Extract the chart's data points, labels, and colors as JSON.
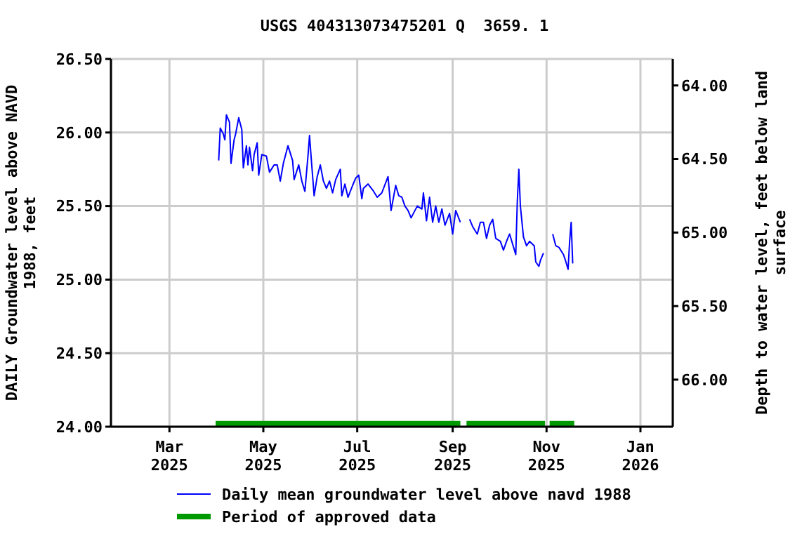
{
  "chart_data": {
    "type": "line",
    "title": "USGS 404313073475201 Q  3659. 1",
    "ylabel": "DAILY Groundwater level above NAVD 1988, feet",
    "y2label": "Depth to water level, feet below land surface",
    "xlim": [
      "2025-01-22",
      "2026-01-22"
    ],
    "xticks": [
      {
        "value": "2025-03-01",
        "label": "Mar\n2025"
      },
      {
        "value": "2025-05-01",
        "label": "May\n2025"
      },
      {
        "value": "2025-07-01",
        "label": "Jul\n2025"
      },
      {
        "value": "2025-09-01",
        "label": "Sep\n2025"
      },
      {
        "value": "2025-11-01",
        "label": "Nov\n2025"
      },
      {
        "value": "2026-01-01",
        "label": "Jan\n2026"
      }
    ],
    "ylim": [
      24,
      26.5
    ],
    "yticks": [
      {
        "value": 24,
        "label": "24.00"
      },
      {
        "value": 24.5,
        "label": "24.50"
      },
      {
        "value": 25,
        "label": "25.00"
      },
      {
        "value": 25.5,
        "label": "25.50"
      },
      {
        "value": 26,
        "label": "26.00"
      },
      {
        "value": 26.5,
        "label": "26.50"
      }
    ],
    "y2lim": [
      66.32,
      63.82
    ],
    "y2ticks": [
      {
        "value": 64,
        "label": "64.00"
      },
      {
        "value": 64.5,
        "label": "64.50"
      },
      {
        "value": 65,
        "label": "65.00"
      },
      {
        "value": 65.5,
        "label": "65.50"
      },
      {
        "value": 66,
        "label": "66.00"
      }
    ],
    "grid": true,
    "legend": "bottom",
    "line_style": "solid",
    "series": [
      {
        "name": "Daily mean groundwater level above navd 1988",
        "color": "#0000ff",
        "x": [
          "2025-04-02",
          "2025-04-03",
          "2025-04-05",
          "2025-04-06",
          "2025-04-07",
          "2025-04-09",
          "2025-04-10",
          "2025-04-12",
          "2025-04-13",
          "2025-04-15",
          "2025-04-17",
          "2025-04-18",
          "2025-04-20",
          "2025-04-21",
          "2025-04-22",
          "2025-04-24",
          "2025-04-25",
          "2025-04-27",
          "2025-04-28",
          "2025-04-30",
          "2025-05-03",
          "2025-05-05",
          "2025-05-08",
          "2025-05-10",
          "2025-05-12",
          "2025-05-14",
          "2025-05-17",
          "2025-05-20",
          "2025-05-21",
          "2025-05-24",
          "2025-05-26",
          "2025-05-28",
          "2025-05-30",
          "2025-05-31",
          "2025-06-01",
          "2025-06-03",
          "2025-06-05",
          "2025-06-07",
          "2025-06-09",
          "2025-06-11",
          "2025-06-13",
          "2025-06-15",
          "2025-06-17",
          "2025-06-20",
          "2025-06-21",
          "2025-06-23",
          "2025-06-25",
          "2025-06-28",
          "2025-06-30",
          "2025-07-02",
          "2025-07-04",
          "2025-07-05",
          "2025-07-08",
          "2025-07-11",
          "2025-07-14",
          "2025-07-17",
          "2025-07-21",
          "2025-07-23",
          "2025-07-26",
          "2025-07-28",
          "2025-07-30",
          "2025-08-01",
          "2025-08-03",
          "2025-08-05",
          "2025-08-09",
          "2025-08-12",
          "2025-08-13",
          "2025-08-15",
          "2025-08-17",
          "2025-08-19",
          "2025-08-21",
          "2025-08-23",
          "2025-08-25",
          "2025-08-27",
          "2025-08-30",
          "2025-09-01",
          "2025-09-03",
          "2025-09-06",
          "2025-09-10",
          "2025-09-12",
          "2025-09-14",
          "2025-09-17",
          "2025-09-19",
          "2025-09-21",
          "2025-09-23",
          "2025-09-25",
          "2025-09-27",
          "2025-09-29",
          "2025-10-02",
          "2025-10-04",
          "2025-10-06",
          "2025-10-08",
          "2025-10-12",
          "2025-10-13",
          "2025-10-14",
          "2025-10-15",
          "2025-10-17",
          "2025-10-19",
          "2025-10-21",
          "2025-10-24",
          "2025-10-25",
          "2025-10-27",
          "2025-10-28",
          "2025-10-30",
          "2025-11-02",
          "2025-11-05",
          "2025-11-07",
          "2025-11-09",
          "2025-11-12",
          "2025-11-13",
          "2025-11-15",
          "2025-11-16",
          "2025-11-17",
          "2025-11-18"
        ],
        "values": [
          25.81,
          26.03,
          25.99,
          25.95,
          26.12,
          26.07,
          25.79,
          25.95,
          25.99,
          26.1,
          26.02,
          25.76,
          25.91,
          25.78,
          25.9,
          25.74,
          25.85,
          25.93,
          25.71,
          25.85,
          25.84,
          25.73,
          25.78,
          25.78,
          25.67,
          25.79,
          25.91,
          25.81,
          25.68,
          25.78,
          25.67,
          25.6,
          25.84,
          25.98,
          25.84,
          25.57,
          25.7,
          25.78,
          25.67,
          25.62,
          25.67,
          25.59,
          25.68,
          25.75,
          25.57,
          25.65,
          25.56,
          25.64,
          25.69,
          25.71,
          25.55,
          25.62,
          25.65,
          25.61,
          25.56,
          25.59,
          25.7,
          25.47,
          25.64,
          25.57,
          25.56,
          25.5,
          25.47,
          25.42,
          25.5,
          25.48,
          25.59,
          25.4,
          25.56,
          25.39,
          25.5,
          25.39,
          25.48,
          25.37,
          25.45,
          25.31,
          25.47,
          25.39,
          null,
          25.41,
          25.36,
          25.31,
          25.39,
          25.39,
          25.28,
          25.37,
          25.41,
          25.28,
          25.26,
          25.2,
          25.26,
          25.31,
          25.17,
          25.53,
          25.75,
          25.5,
          25.29,
          25.23,
          25.26,
          25.23,
          25.12,
          25.09,
          25.13,
          25.18,
          null,
          25.31,
          25.23,
          25.22,
          25.17,
          25.14,
          25.07,
          25.26,
          25.39,
          25.11
        ]
      },
      {
        "name": "Period of approved data",
        "color": "#009900",
        "x": [
          "2025-03-31",
          "2025-09-06",
          "2025-09-08",
          "2025-09-10",
          "2025-10-31",
          "2025-11-02",
          "2025-11-03",
          "2025-11-19"
        ],
        "values": [
          24.02,
          24.02,
          null,
          24.02,
          24.02,
          null,
          24.02,
          24.02
        ]
      }
    ]
  }
}
